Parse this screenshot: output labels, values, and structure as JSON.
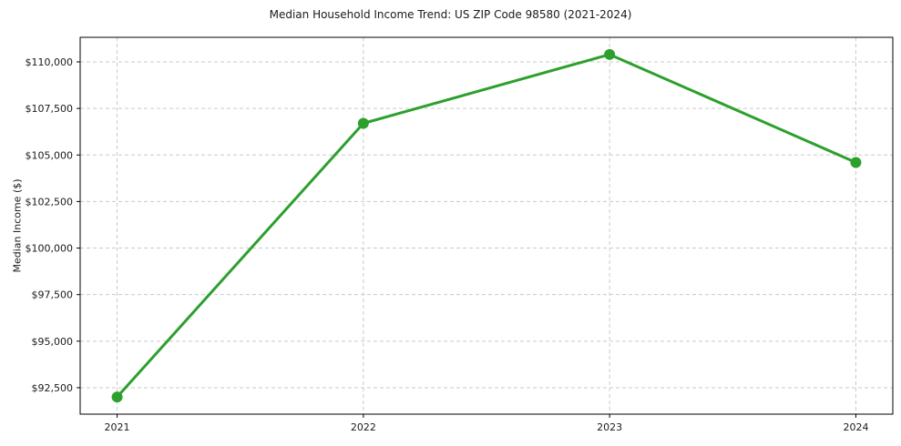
{
  "chart_data": {
    "type": "line",
    "title": "Median Household Income Trend: US ZIP Code 98580 (2021-2024)",
    "xlabel": "",
    "ylabel": "Median Income ($)",
    "x": [
      2021,
      2022,
      2023,
      2024
    ],
    "series": [
      {
        "name": "Median Household Income",
        "values": [
          92000,
          106700,
          110400,
          104600
        ]
      }
    ],
    "xlim": [
      2020.85,
      2024.15
    ],
    "ylim": [
      91080,
      111320
    ],
    "xticks": {
      "values": [
        2021,
        2022,
        2023,
        2024
      ],
      "labels": [
        "2021",
        "2022",
        "2023",
        "2024"
      ]
    },
    "yticks": {
      "values": [
        92500,
        95000,
        97500,
        100000,
        102500,
        105000,
        107500,
        110000
      ],
      "labels": [
        "$92,500",
        "$95,000",
        "$97,500",
        "$100,000",
        "$102,500",
        "$105,000",
        "$107,500",
        "$110,000"
      ]
    },
    "grid": true,
    "grid_style": "dashed",
    "legend": "none",
    "marker": "circle",
    "colors": {
      "line": "#2ca02c",
      "marker": "#2ca02c",
      "grid": "#c9c9c9",
      "spine": "#000000",
      "text": "#1a1a1a",
      "background": "#ffffff"
    }
  }
}
